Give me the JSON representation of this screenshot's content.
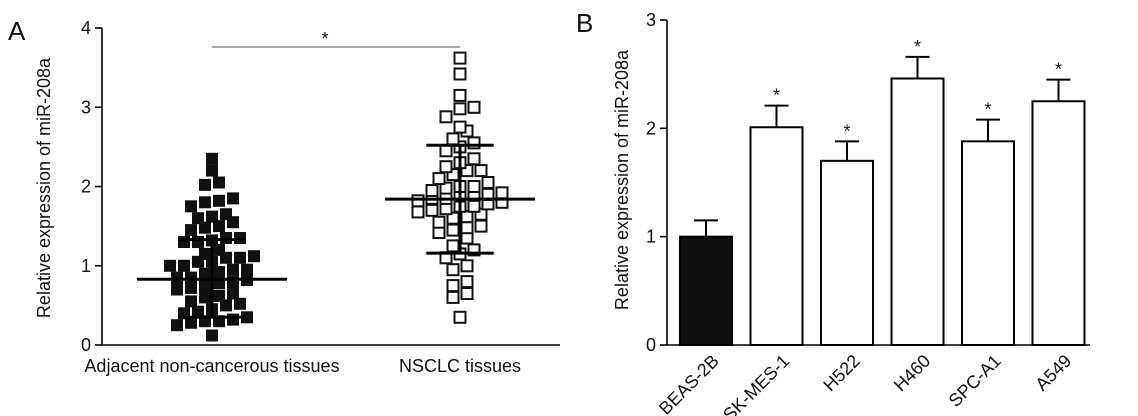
{
  "chart_data": [
    {
      "panel": "A",
      "type": "scatter",
      "title": "",
      "ylabel": "Relative expression of miR-208a",
      "ylim": [
        0,
        4
      ],
      "yticks": [
        0,
        1,
        2,
        3,
        4
      ],
      "categories": [
        "Adjacent non-cancerous tissues",
        "NSCLC tissues"
      ],
      "significance": "*",
      "grid": false,
      "series": [
        {
          "category": "Adjacent non-cancerous tissues",
          "marker": "filled-square",
          "color": "#111111",
          "mean": 0.83,
          "sd_upper": 1.33,
          "sd_lower": 0.35,
          "values": [
            2.35,
            2.2,
            2.05,
            2.02,
            1.85,
            1.82,
            1.8,
            1.75,
            1.65,
            1.62,
            1.6,
            1.55,
            1.5,
            1.48,
            1.45,
            1.35,
            1.35,
            1.32,
            1.3,
            1.3,
            1.2,
            1.15,
            1.12,
            1.1,
            1.1,
            1.05,
            1.05,
            1.0,
            1.0,
            0.95,
            0.95,
            0.92,
            0.9,
            0.85,
            0.85,
            0.82,
            0.8,
            0.78,
            0.75,
            0.72,
            0.7,
            0.65,
            0.62,
            0.6,
            0.55,
            0.52,
            0.5,
            0.45,
            0.42,
            0.4,
            0.35,
            0.32,
            0.3,
            0.3,
            0.28,
            0.25,
            0.12
          ]
        },
        {
          "category": "NSCLC tissues",
          "marker": "open-square",
          "color": "#111111",
          "mean": 1.84,
          "sd_upper": 2.52,
          "sd_lower": 1.16,
          "values": [
            3.62,
            3.42,
            3.15,
            3.0,
            2.98,
            2.88,
            2.75,
            2.7,
            2.6,
            2.55,
            2.5,
            2.45,
            2.35,
            2.3,
            2.25,
            2.2,
            2.2,
            2.15,
            2.1,
            2.05,
            2.0,
            2.0,
            1.98,
            1.95,
            1.92,
            1.9,
            1.9,
            1.88,
            1.85,
            1.85,
            1.82,
            1.8,
            1.78,
            1.75,
            1.75,
            1.72,
            1.7,
            1.68,
            1.65,
            1.62,
            1.6,
            1.55,
            1.5,
            1.48,
            1.45,
            1.42,
            1.35,
            1.25,
            1.2,
            1.15,
            1.1,
            1.0,
            0.95,
            0.8,
            0.75,
            0.65,
            0.6,
            0.35
          ]
        }
      ]
    },
    {
      "panel": "B",
      "type": "bar",
      "title": "",
      "ylabel": "Relative expression of miR-208a",
      "ylim": [
        0,
        3
      ],
      "yticks": [
        0,
        1,
        2,
        3
      ],
      "categories": [
        "BEAS-2B",
        "SK-MES-1",
        "H522",
        "H460",
        "SPC-A1",
        "A549"
      ],
      "values": [
        1.0,
        2.01,
        1.7,
        2.46,
        1.88,
        2.25
      ],
      "errors": [
        0.15,
        0.2,
        0.18,
        0.2,
        0.2,
        0.2
      ],
      "significance": [
        "",
        "*",
        "*",
        "*",
        "*",
        "*"
      ],
      "bar_fills": [
        "#111111",
        "#ffffff",
        "#ffffff",
        "#ffffff",
        "#ffffff",
        "#ffffff"
      ],
      "grid": false
    }
  ]
}
